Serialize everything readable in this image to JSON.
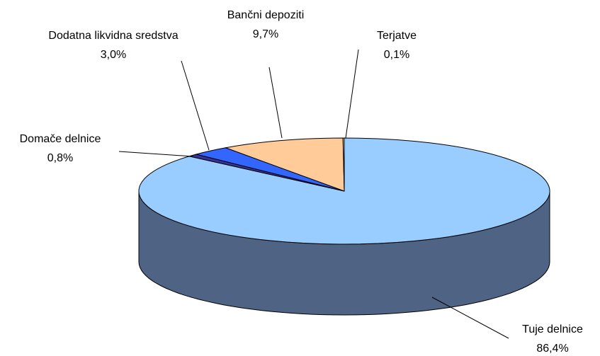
{
  "chart_data": {
    "type": "pie3d",
    "categories": [
      "Tuje delnice",
      "Domače delnice",
      "Dodatna likvidna sredstva",
      "Bančni depoziti",
      "Terjatve"
    ],
    "values": [
      86.4,
      0.8,
      3.0,
      9.7,
      0.1
    ],
    "value_labels": [
      "86,4%",
      "0,8%",
      "3,0%",
      "9,7%",
      "0,1%"
    ],
    "colors": [
      "#99ccff",
      "#333399",
      "#3366ff",
      "#ffcc99",
      "#ffffcc"
    ],
    "side_colors": [
      "#4f6384",
      "#222266",
      "#2244aa",
      "#aa8866",
      "#aaaa88"
    ]
  }
}
